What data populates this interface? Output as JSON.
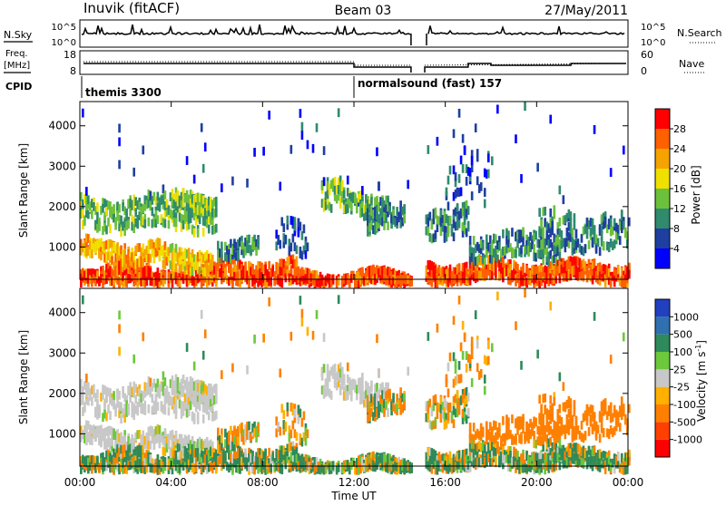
{
  "header": {
    "station": "Inuvik (fitACF)",
    "beam": "Beam 03",
    "date": "27/May/2011"
  },
  "top_panels": {
    "nsky_label": "N.Sky",
    "nsky_ticks": [
      "10^5",
      "10^0"
    ],
    "nsearch_label": "N.Search",
    "nsearch_ticks": [
      "10^5",
      "10^0"
    ],
    "freq_label_1": "Freq.",
    "freq_label_2": "[MHz]",
    "freq_ticks": [
      "18",
      "8"
    ],
    "nave_label": "Nave",
    "nave_ticks": [
      "60",
      "0"
    ],
    "cpid_label": "CPID",
    "cpid_modes": [
      {
        "label": "themis 3300",
        "start_hour": 0
      },
      {
        "label": "normalsound (fast) 157",
        "start_hour": 12
      }
    ]
  },
  "colors": {
    "power_scale": [
      "#0000ff",
      "#1e3fa0",
      "#2f8a6e",
      "#6cc03c",
      "#f0e000",
      "#f5a300",
      "#ff6000",
      "#ff0000"
    ],
    "velocity_scale": [
      "#2040c0",
      "#3070b0",
      "#2e8a5a",
      "#6cc83c",
      "#c8c8c8",
      "#ffb000",
      "#ff8000",
      "#ff4000",
      "#ff0000"
    ]
  },
  "chart_data": [
    {
      "type": "heatmap",
      "panel": "power",
      "ylabel": "Slant Range [km]",
      "xlim_hours": [
        0,
        24
      ],
      "ylim": [
        200,
        4600
      ],
      "yticks": [
        "1000",
        "2000",
        "3000",
        "4000"
      ],
      "colorbar_label": "Power [dB]",
      "colorbar_ticks": [
        "4",
        "8",
        "12",
        "16",
        "20",
        "24",
        "28"
      ],
      "data_gap_hours": [
        14.5,
        15.1
      ]
    },
    {
      "type": "heatmap",
      "panel": "velocity",
      "ylabel": "Slant Range [km]",
      "xlim_hours": [
        0,
        24
      ],
      "ylim": [
        200,
        4600
      ],
      "yticks": [
        "1000",
        "2000",
        "3000",
        "4000"
      ],
      "colorbar_label": "Velocity [m s",
      "colorbar_label_sup": "-1",
      "colorbar_label_end": "]",
      "colorbar_ticks": [
        "1000",
        "500",
        "100",
        "25",
        "-25",
        "-100",
        "-500",
        "-1000"
      ],
      "data_gap_hours": [
        14.5,
        15.1
      ]
    }
  ],
  "xaxis": {
    "ticks": [
      "00:00",
      "04:00",
      "08:00",
      "12:00",
      "16:00",
      "20:00",
      "00:00"
    ],
    "label": "Time UT"
  }
}
